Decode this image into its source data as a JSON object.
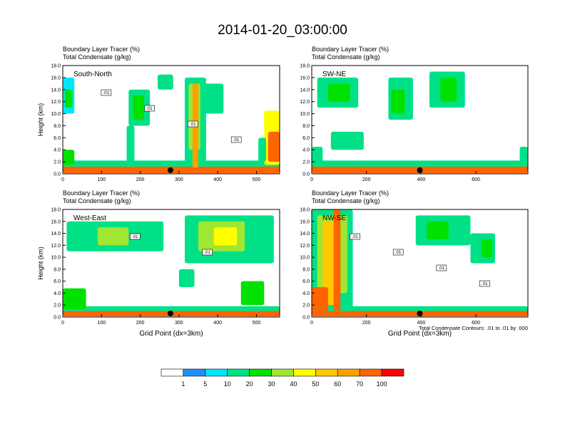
{
  "title": "2014-01-20_03:00:00",
  "chart_data": [
    {
      "type": "heatmap",
      "panel": "South-North",
      "subtitle_lines": [
        "Boundary Layer Tracer    (%)",
        "Total Condensate    (g/kg)"
      ],
      "ylabel": "Height (km)",
      "xlabel": "",
      "xlim": [
        0,
        560
      ],
      "ylim": [
        0,
        18
      ],
      "xticks": [
        0,
        100,
        200,
        300,
        400,
        500
      ],
      "yticks": [
        "0.0",
        "2.0",
        "4.0",
        "6.0",
        "8.0",
        "10.0",
        "12.0",
        "14.0",
        "16.0",
        "18.0"
      ],
      "marker_x": 278,
      "contour_labels": [
        ".01",
        ".01",
        ".01",
        ".01"
      ],
      "cells": [
        {
          "x": 0,
          "w": 560,
          "y": 0.1,
          "h": 1.4,
          "v": 75
        },
        {
          "x": 0,
          "w": 560,
          "y": 1.2,
          "h": 1.0,
          "v": 12
        },
        {
          "x": 0,
          "w": 30,
          "y": 1.5,
          "h": 2.5,
          "v": 20
        },
        {
          "x": 0,
          "w": 30,
          "y": 10,
          "h": 6,
          "v": 8
        },
        {
          "x": 5,
          "w": 20,
          "y": 11,
          "h": 3,
          "v": 25
        },
        {
          "x": 170,
          "w": 55,
          "y": 8,
          "h": 6,
          "v": 12
        },
        {
          "x": 180,
          "w": 30,
          "y": 9,
          "h": 4,
          "v": 28
        },
        {
          "x": 165,
          "w": 20,
          "y": 2,
          "h": 6,
          "v": 10
        },
        {
          "x": 245,
          "w": 40,
          "y": 14,
          "h": 2.5,
          "v": 15
        },
        {
          "x": 315,
          "w": 55,
          "y": 2,
          "h": 14,
          "v": 15
        },
        {
          "x": 325,
          "w": 30,
          "y": 4,
          "h": 11,
          "v": 35
        },
        {
          "x": 335,
          "w": 15,
          "y": 1,
          "h": 14,
          "v": 60
        },
        {
          "x": 355,
          "w": 60,
          "y": 10,
          "h": 5,
          "v": 12
        },
        {
          "x": 520,
          "w": 40,
          "y": 1.5,
          "h": 9,
          "v": 45
        },
        {
          "x": 530,
          "w": 30,
          "y": 2,
          "h": 5,
          "v": 80
        },
        {
          "x": 505,
          "w": 20,
          "y": 2,
          "h": 4,
          "v": 12
        }
      ]
    },
    {
      "type": "heatmap",
      "panel": "SW-NE",
      "subtitle_lines": [
        "Boundary Layer Tracer    (%)",
        "Total Condensate    (g/kg)"
      ],
      "ylabel": "",
      "xlabel": "",
      "xlim": [
        0,
        790
      ],
      "ylim": [
        0,
        18
      ],
      "xticks": [
        0,
        200,
        400,
        600
      ],
      "yticks": [
        "0.0",
        "2.0",
        "4.0",
        "6.0",
        "8.0",
        "10.0",
        "12.0",
        "14.0",
        "16.0",
        "18.0"
      ],
      "marker_x": 395,
      "contour_labels": [],
      "cells": [
        {
          "x": 0,
          "w": 790,
          "y": 0.1,
          "h": 1.4,
          "v": 75
        },
        {
          "x": 0,
          "w": 790,
          "y": 1.2,
          "h": 1.0,
          "v": 12
        },
        {
          "x": 0,
          "w": 40,
          "y": 1.5,
          "h": 3,
          "v": 15
        },
        {
          "x": 20,
          "w": 150,
          "y": 11,
          "h": 5,
          "v": 10
        },
        {
          "x": 60,
          "w": 80,
          "y": 12,
          "h": 3,
          "v": 28
        },
        {
          "x": 70,
          "w": 120,
          "y": 4,
          "h": 3,
          "v": 10
        },
        {
          "x": 280,
          "w": 90,
          "y": 9,
          "h": 7,
          "v": 12
        },
        {
          "x": 290,
          "w": 50,
          "y": 10,
          "h": 4,
          "v": 28
        },
        {
          "x": 430,
          "w": 130,
          "y": 11,
          "h": 6,
          "v": 10
        },
        {
          "x": 470,
          "w": 60,
          "y": 12,
          "h": 4,
          "v": 28
        },
        {
          "x": 760,
          "w": 30,
          "y": 1.5,
          "h": 3,
          "v": 15
        }
      ]
    },
    {
      "type": "heatmap",
      "panel": "West-East",
      "subtitle_lines": [
        "Boundary Layer Tracer    (%)",
        "Total Condensate    (g/kg)"
      ],
      "ylabel": "Height (km)",
      "xlabel": "Grid Point (dx=3km)",
      "xlim": [
        0,
        560
      ],
      "ylim": [
        0,
        18
      ],
      "xticks": [
        0,
        100,
        200,
        300,
        400,
        500
      ],
      "yticks": [
        "0.0",
        "2.0",
        "4.0",
        "6.0",
        "8.0",
        "10.0",
        "12.0",
        "14.0",
        "16.0",
        "18.0"
      ],
      "marker_x": 278,
      "contour_labels": [
        ".01",
        ".01"
      ],
      "cells": [
        {
          "x": 0,
          "w": 560,
          "y": 0.1,
          "h": 1.2,
          "v": 75
        },
        {
          "x": 0,
          "w": 560,
          "y": 1.0,
          "h": 0.8,
          "v": 12
        },
        {
          "x": 0,
          "w": 60,
          "y": 1.3,
          "h": 3.5,
          "v": 20
        },
        {
          "x": 10,
          "w": 250,
          "y": 11,
          "h": 5,
          "v": 10
        },
        {
          "x": 90,
          "w": 80,
          "y": 12,
          "h": 3,
          "v": 30
        },
        {
          "x": 315,
          "w": 230,
          "y": 9,
          "h": 8,
          "v": 12
        },
        {
          "x": 350,
          "w": 120,
          "y": 11,
          "h": 5,
          "v": 30
        },
        {
          "x": 390,
          "w": 60,
          "y": 12,
          "h": 3,
          "v": 45
        },
        {
          "x": 460,
          "w": 60,
          "y": 2,
          "h": 4,
          "v": 25
        },
        {
          "x": 300,
          "w": 40,
          "y": 5,
          "h": 3,
          "v": 10
        }
      ]
    },
    {
      "type": "heatmap",
      "panel": "NW-SE",
      "subtitle_lines": [
        "Boundary Layer Tracer    (%)",
        "Total Condensate    (g/kg)"
      ],
      "ylabel": "",
      "xlabel": "Grid Point (dx=3km)",
      "xlim": [
        0,
        790
      ],
      "ylim": [
        0,
        18
      ],
      "xticks": [
        0,
        200,
        400,
        600
      ],
      "yticks": [
        "0.0",
        "2.0",
        "4.0",
        "6.0",
        "8.0",
        "10.0",
        "12.0",
        "14.0",
        "16.0",
        "18.0"
      ],
      "marker_x": 395,
      "contour_labels": [
        ".01",
        ".01",
        ".01",
        ".01"
      ],
      "cells": [
        {
          "x": 0,
          "w": 790,
          "y": 0.1,
          "h": 1.2,
          "v": 75
        },
        {
          "x": 0,
          "w": 790,
          "y": 1.0,
          "h": 0.8,
          "v": 12
        },
        {
          "x": 0,
          "w": 150,
          "y": 1,
          "h": 17,
          "v": 12
        },
        {
          "x": 20,
          "w": 110,
          "y": 4,
          "h": 13,
          "v": 30
        },
        {
          "x": 40,
          "w": 60,
          "y": 2,
          "h": 14,
          "v": 50
        },
        {
          "x": 80,
          "w": 25,
          "y": 1,
          "h": 17,
          "v": 75
        },
        {
          "x": 0,
          "w": 60,
          "y": 1,
          "h": 4,
          "v": 80
        },
        {
          "x": 380,
          "w": 200,
          "y": 12,
          "h": 5,
          "v": 10
        },
        {
          "x": 420,
          "w": 80,
          "y": 13,
          "h": 3,
          "v": 25
        },
        {
          "x": 580,
          "w": 90,
          "y": 9,
          "h": 5,
          "v": 12
        },
        {
          "x": 620,
          "w": 40,
          "y": 10,
          "h": 3,
          "v": 28
        }
      ]
    }
  ],
  "colorbar": {
    "labels": [
      "1",
      "5",
      "10",
      "20",
      "30",
      "40",
      "50",
      "60",
      "70",
      "100"
    ],
    "colors": [
      "#ffffff",
      "#1e8fff",
      "#00e5ff",
      "#00e187",
      "#00e100",
      "#a0e632",
      "#ffff00",
      "#ffc800",
      "#ffa000",
      "#ff6400",
      "#ff0000"
    ]
  },
  "footnote": "Total Condensate Contours: .01 to .01 by .000"
}
